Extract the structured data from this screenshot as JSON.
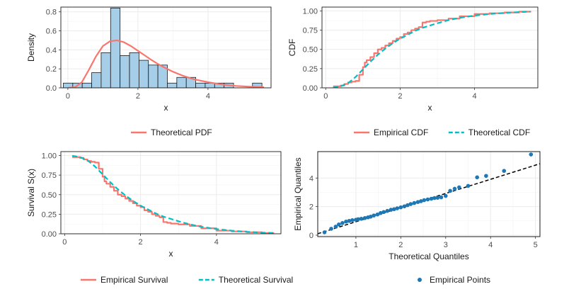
{
  "chart_data": [
    {
      "id": "hist",
      "type": "histogram",
      "xlabel": "x",
      "ylabel": "Density",
      "xlim": [
        -0.2,
        5.8
      ],
      "ylim": [
        0,
        0.85
      ],
      "xticks": [
        "0",
        "2",
        "4"
      ],
      "xtick_values": [
        0,
        2,
        4
      ],
      "yticks": [
        "0.0",
        "0.2",
        "0.4",
        "0.6",
        "0.8"
      ],
      "ytick_values": [
        0,
        0.2,
        0.4,
        0.6,
        0.8
      ],
      "bin_width": 0.27,
      "bins": [
        {
          "x0": -0.13,
          "value": 0.05
        },
        {
          "x0": 0.14,
          "value": 0.05
        },
        {
          "x0": 0.41,
          "value": 0.05
        },
        {
          "x0": 0.68,
          "value": 0.16
        },
        {
          "x0": 0.95,
          "value": 0.37
        },
        {
          "x0": 1.22,
          "value": 0.84
        },
        {
          "x0": 1.49,
          "value": 0.34
        },
        {
          "x0": 1.76,
          "value": 0.37
        },
        {
          "x0": 2.03,
          "value": 0.29
        },
        {
          "x0": 2.3,
          "value": 0.24
        },
        {
          "x0": 2.57,
          "value": 0.24
        },
        {
          "x0": 2.84,
          "value": 0.05
        },
        {
          "x0": 3.11,
          "value": 0.11
        },
        {
          "x0": 3.38,
          "value": 0.11
        },
        {
          "x0": 3.65,
          "value": 0.05
        },
        {
          "x0": 3.92,
          "value": 0.05
        },
        {
          "x0": 4.19,
          "value": 0.05
        },
        {
          "x0": 4.46,
          "value": 0.05
        },
        {
          "x0": 4.73,
          "value": 0
        },
        {
          "x0": 5.0,
          "value": 0
        },
        {
          "x0": 5.27,
          "value": 0.05
        }
      ],
      "pdf_curve": {
        "x": [
          0,
          0.2,
          0.4,
          0.6,
          0.8,
          1.0,
          1.2,
          1.4,
          1.6,
          1.8,
          2.0,
          2.2,
          2.4,
          2.6,
          2.8,
          3.0,
          3.3,
          3.6,
          4.0,
          4.4,
          4.8,
          5.2,
          5.6
        ],
        "y": [
          0,
          0.005,
          0.06,
          0.19,
          0.33,
          0.44,
          0.49,
          0.5,
          0.48,
          0.44,
          0.39,
          0.34,
          0.29,
          0.245,
          0.205,
          0.17,
          0.125,
          0.09,
          0.06,
          0.035,
          0.02,
          0.012,
          0.007
        ]
      },
      "legend": [
        {
          "label": "Theoretical PDF",
          "color": "#f8766d",
          "style": "line"
        }
      ]
    },
    {
      "id": "cdf",
      "type": "line",
      "xlabel": "x",
      "ylabel": "CDF",
      "xlim": [
        -0.1,
        5.7
      ],
      "ylim": [
        0,
        1.05
      ],
      "xticks": [
        "0",
        "2",
        "4"
      ],
      "xtick_values": [
        0,
        2,
        4
      ],
      "yticks": [
        "0.00",
        "0.25",
        "0.50",
        "0.75",
        "1.00"
      ],
      "ytick_values": [
        0,
        0.25,
        0.5,
        0.75,
        1.0
      ],
      "series": [
        {
          "name": "Empirical CDF",
          "color": "#f8766d",
          "dashed": false,
          "x": [
            0.2,
            0.4,
            0.5,
            0.6,
            0.7,
            0.8,
            0.9,
            1.0,
            1.05,
            1.1,
            1.2,
            1.3,
            1.4,
            1.5,
            1.6,
            1.7,
            1.8,
            1.9,
            2.0,
            2.1,
            2.2,
            2.3,
            2.4,
            2.5,
            2.6,
            2.7,
            2.8,
            3.0,
            3.3,
            3.6,
            4.0,
            4.4,
            4.8,
            5.2,
            5.5
          ],
          "y": [
            0.02,
            0.03,
            0.05,
            0.07,
            0.08,
            0.09,
            0.17,
            0.27,
            0.33,
            0.36,
            0.4,
            0.45,
            0.5,
            0.52,
            0.55,
            0.58,
            0.61,
            0.64,
            0.66,
            0.7,
            0.72,
            0.75,
            0.77,
            0.79,
            0.85,
            0.86,
            0.87,
            0.88,
            0.9,
            0.93,
            0.96,
            0.97,
            0.98,
            0.99,
            1.0
          ]
        },
        {
          "name": "Theoretical CDF",
          "color": "#00bfc4",
          "dashed": true,
          "x": [
            0.2,
            0.4,
            0.6,
            0.8,
            1.0,
            1.2,
            1.4,
            1.6,
            1.8,
            2.0,
            2.2,
            2.4,
            2.6,
            2.8,
            3.0,
            3.3,
            3.6,
            4.0,
            4.4,
            4.8,
            5.2,
            5.5
          ],
          "y": [
            0.003,
            0.02,
            0.06,
            0.14,
            0.24,
            0.34,
            0.43,
            0.51,
            0.58,
            0.64,
            0.69,
            0.74,
            0.78,
            0.81,
            0.84,
            0.88,
            0.91,
            0.94,
            0.96,
            0.975,
            0.985,
            0.99
          ]
        }
      ],
      "legend": [
        {
          "label": "Empirical CDF",
          "color": "#f8766d",
          "style": "line"
        },
        {
          "label": "Theoretical CDF",
          "color": "#00bfc4",
          "style": "dashed"
        }
      ]
    },
    {
      "id": "surv",
      "type": "line",
      "xlabel": "x",
      "ylabel": "Survival S(x)",
      "xlim": [
        -0.1,
        5.7
      ],
      "ylim": [
        0,
        1.05
      ],
      "xticks": [
        "0",
        "2",
        "4"
      ],
      "xtick_values": [
        0,
        2,
        4
      ],
      "yticks": [
        "0.00",
        "0.25",
        "0.50",
        "0.75",
        "1.00"
      ],
      "ytick_values": [
        0,
        0.25,
        0.5,
        0.75,
        1.0
      ],
      "series": [
        {
          "name": "Empirical Survival",
          "color": "#f8766d",
          "dashed": false,
          "x": [
            0.2,
            0.4,
            0.5,
            0.6,
            0.7,
            0.8,
            0.9,
            1.0,
            1.05,
            1.1,
            1.2,
            1.3,
            1.4,
            1.5,
            1.6,
            1.7,
            1.8,
            1.9,
            2.0,
            2.1,
            2.2,
            2.3,
            2.4,
            2.5,
            2.6,
            2.7,
            2.8,
            3.0,
            3.3,
            3.6,
            4.0,
            4.4,
            4.8,
            5.2,
            5.5
          ],
          "y": [
            0.98,
            0.97,
            0.95,
            0.93,
            0.92,
            0.91,
            0.83,
            0.73,
            0.67,
            0.64,
            0.6,
            0.55,
            0.5,
            0.48,
            0.45,
            0.42,
            0.39,
            0.36,
            0.34,
            0.3,
            0.28,
            0.25,
            0.23,
            0.21,
            0.15,
            0.14,
            0.13,
            0.12,
            0.1,
            0.07,
            0.04,
            0.03,
            0.02,
            0.01,
            0.0
          ]
        },
        {
          "name": "Theoretical Survival",
          "color": "#00bfc4",
          "dashed": true,
          "x": [
            0.2,
            0.4,
            0.6,
            0.8,
            1.0,
            1.2,
            1.4,
            1.6,
            1.8,
            2.0,
            2.2,
            2.4,
            2.6,
            2.8,
            3.0,
            3.3,
            3.6,
            4.0,
            4.4,
            4.8,
            5.2,
            5.5
          ],
          "y": [
            0.997,
            0.98,
            0.94,
            0.86,
            0.76,
            0.66,
            0.57,
            0.49,
            0.42,
            0.36,
            0.31,
            0.26,
            0.22,
            0.19,
            0.16,
            0.12,
            0.09,
            0.06,
            0.04,
            0.025,
            0.015,
            0.01
          ]
        }
      ],
      "legend": [
        {
          "label": "Empirical Survival",
          "color": "#f8766d",
          "style": "line"
        },
        {
          "label": "Theoretical Survival",
          "color": "#00bfc4",
          "style": "dashed"
        }
      ]
    },
    {
      "id": "qq",
      "type": "scatter",
      "xlabel": "Theoretical Quantiles",
      "ylabel": "Empirical Quantiles",
      "xlim": [
        0.15,
        5.1
      ],
      "ylim": [
        -0.1,
        5.85
      ],
      "xticks": [
        "1",
        "2",
        "3",
        "4",
        "5"
      ],
      "xtick_values": [
        1,
        2,
        3,
        4,
        5
      ],
      "yticks": [
        "0",
        "2",
        "4"
      ],
      "ytick_values": [
        0,
        2,
        4
      ],
      "reference_line": {
        "x": [
          0.15,
          5.1
        ],
        "y": [
          0.1,
          5.0
        ],
        "color": "#000000",
        "dashed": true
      },
      "points": {
        "color": "#1f77b4",
        "x": [
          0.3,
          0.45,
          0.55,
          0.62,
          0.7,
          0.78,
          0.85,
          0.92,
          1.0,
          1.05,
          1.12,
          1.2,
          1.27,
          1.33,
          1.4,
          1.48,
          1.55,
          1.62,
          1.7,
          1.78,
          1.85,
          1.92,
          2.0,
          2.08,
          2.15,
          2.22,
          2.3,
          2.38,
          2.45,
          2.52,
          2.6,
          2.68,
          2.75,
          2.82,
          2.9,
          3.0,
          3.1,
          3.2,
          3.3,
          3.5,
          3.7,
          3.9,
          4.3,
          4.9
        ],
        "y": [
          0.2,
          0.45,
          0.6,
          0.75,
          0.85,
          0.95,
          1.0,
          1.05,
          1.08,
          1.12,
          1.15,
          1.2,
          1.25,
          1.3,
          1.38,
          1.45,
          1.55,
          1.62,
          1.7,
          1.78,
          1.82,
          1.88,
          1.95,
          2.02,
          2.1,
          2.18,
          2.25,
          2.32,
          2.38,
          2.45,
          2.5,
          2.55,
          2.6,
          2.62,
          2.65,
          2.75,
          3.1,
          3.25,
          3.35,
          3.45,
          4.05,
          4.15,
          4.5,
          5.65
        ]
      },
      "legend": [
        {
          "label": "Empirical Points",
          "color": "#1f77b4",
          "style": "point"
        }
      ]
    }
  ]
}
